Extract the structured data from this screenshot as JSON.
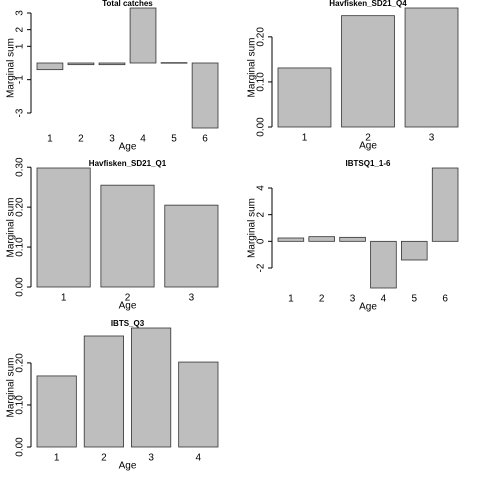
{
  "chart_data": [
    {
      "type": "bar",
      "title": "Total catches",
      "xlabel": "Age",
      "ylabel": "Marginal sum",
      "categories": [
        "1",
        "2",
        "3",
        "4",
        "5",
        "6"
      ],
      "values": [
        -0.4,
        -0.1,
        -0.1,
        3.3,
        0.02,
        -3.9
      ],
      "color": "#bebebe",
      "ylim": [
        -3.9,
        3.3
      ],
      "yticks": [
        -3,
        -1,
        1,
        2,
        3
      ]
    },
    {
      "type": "bar",
      "title": "Havfisken_SD21_Q4",
      "xlabel": "Age",
      "ylabel": "Marginal sum",
      "categories": [
        "1",
        "2",
        "3"
      ],
      "values": [
        0.131,
        0.247,
        0.264
      ],
      "color": "#bebebe",
      "ylim": [
        0,
        0.264
      ],
      "yticks": [
        {
          "value": 0,
          "label": "0.00"
        },
        {
          "value": 0.1,
          "label": "0.10"
        },
        {
          "value": 0.2,
          "label": "0.20"
        }
      ]
    },
    {
      "type": "bar",
      "title": "Havfisken_SD21_Q1",
      "xlabel": "Age",
      "ylabel": "Marginal sum",
      "categories": [
        "1",
        "2",
        "3"
      ],
      "values": [
        0.298,
        0.255,
        0.205
      ],
      "color": "#bebebe",
      "ylim": [
        0,
        0.298
      ],
      "yticks": [
        {
          "value": 0,
          "label": "0.00"
        },
        {
          "value": 0.1,
          "label": "0.10"
        },
        {
          "value": 0.2,
          "label": "0.20"
        },
        {
          "value": 0.3,
          "label": "0.30"
        }
      ]
    },
    {
      "type": "bar",
      "title": "IBTSQ1_1-6",
      "xlabel": "Age",
      "ylabel": "Marginal sum",
      "categories": [
        "1",
        "2",
        "3",
        "4",
        "5",
        "6"
      ],
      "values": [
        0.25,
        0.35,
        0.3,
        -3.5,
        -1.4,
        5.5
      ],
      "color": "#bebebe",
      "ylim": [
        -3.5,
        5.5
      ],
      "yticks": [
        -2,
        0,
        2,
        4
      ]
    },
    {
      "type": "bar",
      "title": "IBTS_Q3",
      "xlabel": "Age",
      "ylabel": "Marginal sum",
      "categories": [
        "1",
        "2",
        "3",
        "4"
      ],
      "values": [
        0.169,
        0.264,
        0.283,
        0.202
      ],
      "color": "#bebebe",
      "ylim": [
        0,
        0.283
      ],
      "yticks": [
        {
          "value": 0,
          "label": "0.00"
        },
        {
          "value": 0.1,
          "label": "0.10"
        },
        {
          "value": 0.2,
          "label": "0.20"
        }
      ]
    }
  ]
}
